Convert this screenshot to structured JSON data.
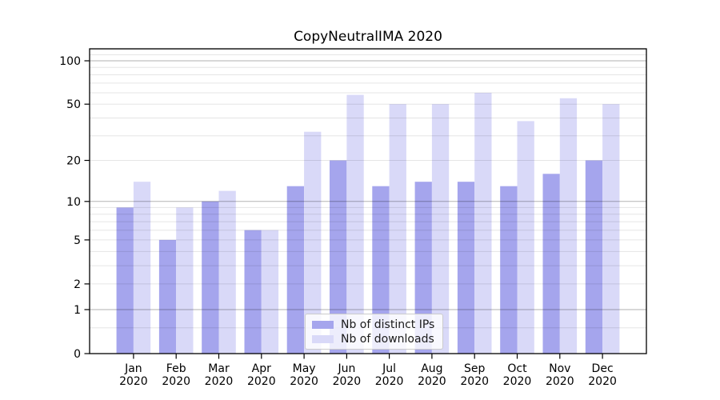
{
  "chart_data": {
    "type": "bar",
    "title": "CopyNeutralIMA 2020",
    "months": [
      "Jan",
      "Feb",
      "Mar",
      "Apr",
      "May",
      "Jun",
      "Jul",
      "Aug",
      "Sep",
      "Oct",
      "Nov",
      "Dec"
    ],
    "year_label": "2020",
    "series": [
      {
        "name": "Nb of distinct IPs",
        "color": "#a5a5ed",
        "values": [
          9,
          5,
          10,
          6,
          13,
          20,
          13,
          14,
          14,
          13,
          16,
          20
        ]
      },
      {
        "name": "Nb of downloads",
        "color": "#d9d9f8",
        "values": [
          14,
          9,
          12,
          6,
          32,
          58,
          50,
          50,
          60,
          38,
          55,
          50
        ]
      }
    ],
    "yscale": "log1p",
    "ylim": [
      0,
      121
    ],
    "yticks": [
      0,
      1,
      2,
      5,
      10,
      20,
      50,
      100
    ],
    "major_gridlines": [
      1,
      10,
      100
    ],
    "minor_gridlines": [
      0.5,
      2,
      3,
      4,
      5,
      6,
      7,
      8,
      9,
      20,
      30,
      40,
      50,
      60,
      70,
      80,
      90,
      110,
      120
    ],
    "legend_position": "lower center",
    "grid": "on",
    "bar_group_width_fraction": 0.8
  }
}
